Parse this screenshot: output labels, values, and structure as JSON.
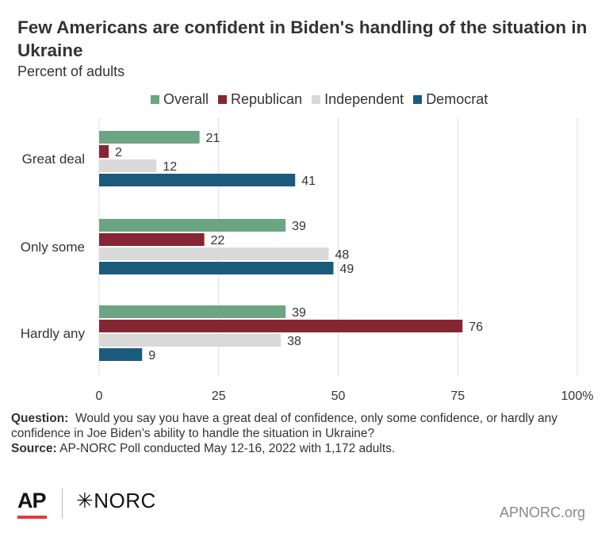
{
  "header": {
    "title": "Few Americans are confident in Biden's handling of the situation in Ukraine",
    "subtitle": "Percent of adults"
  },
  "chart_data": {
    "type": "bar",
    "orientation": "horizontal",
    "title": "Few Americans are confident in Biden's handling of the situation in Ukraine",
    "subtitle": "Percent of adults",
    "categories": [
      "Great deal",
      "Only some",
      "Hardly any"
    ],
    "series": [
      {
        "name": "Overall",
        "color": "#6ba583",
        "values": [
          21,
          39,
          39
        ]
      },
      {
        "name": "Republican",
        "color": "#862633",
        "values": [
          2,
          22,
          76
        ]
      },
      {
        "name": "Independent",
        "color": "#d9d9d9",
        "values": [
          12,
          48,
          38
        ]
      },
      {
        "name": "Democrat",
        "color": "#1b5b7d",
        "values": [
          41,
          49,
          9
        ]
      }
    ],
    "xlim": [
      0,
      100
    ],
    "x_ticks": [
      "0",
      "25",
      "50",
      "75",
      "100%"
    ],
    "x_tick_values": [
      0,
      25,
      50,
      75,
      100
    ],
    "grid": true,
    "legend_position": "top"
  },
  "footer": {
    "question_label": "Question:",
    "question_text": "Would you say you have a great deal of confidence, only some confidence, or hardly any confidence in Joe Biden’s ability to handle the situation in Ukraine?",
    "source_label": "Source:",
    "source_text": "AP-NORC Poll conducted May 12-16, 2022 with 1,172 adults."
  },
  "branding": {
    "ap_logo": "AP",
    "norc_logo": "✳NORC",
    "site": "APNORC.org"
  }
}
